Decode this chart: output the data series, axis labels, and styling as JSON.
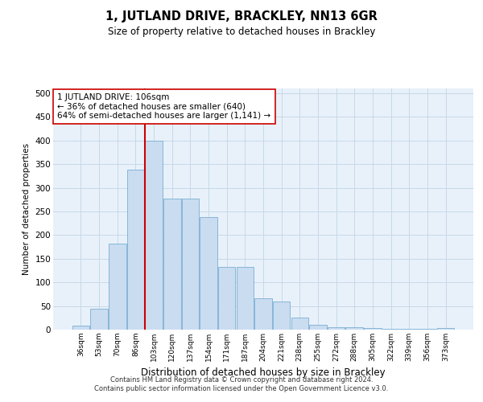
{
  "title": "1, JUTLAND DRIVE, BRACKLEY, NN13 6GR",
  "subtitle": "Size of property relative to detached houses in Brackley",
  "xlabel": "Distribution of detached houses by size in Brackley",
  "ylabel": "Number of detached properties",
  "bar_labels": [
    "36sqm",
    "53sqm",
    "70sqm",
    "86sqm",
    "103sqm",
    "120sqm",
    "137sqm",
    "154sqm",
    "171sqm",
    "187sqm",
    "204sqm",
    "221sqm",
    "238sqm",
    "255sqm",
    "272sqm",
    "288sqm",
    "305sqm",
    "322sqm",
    "339sqm",
    "356sqm",
    "373sqm"
  ],
  "bar_values": [
    8,
    45,
    182,
    338,
    400,
    277,
    277,
    238,
    133,
    133,
    67,
    60,
    25,
    10,
    5,
    5,
    3,
    2,
    2,
    2,
    3
  ],
  "bar_color": "#c9dcf0",
  "bar_edge_color": "#7aaed4",
  "grid_color": "#c8d8e8",
  "background_color": "#e8f1fa",
  "vline_color": "#cc0000",
  "annotation_text": "1 JUTLAND DRIVE: 106sqm\n← 36% of detached houses are smaller (640)\n64% of semi-detached houses are larger (1,141) →",
  "annotation_box_color": "#ffffff",
  "annotation_box_edge": "#cc0000",
  "ylim": [
    0,
    510
  ],
  "yticks": [
    0,
    50,
    100,
    150,
    200,
    250,
    300,
    350,
    400,
    450,
    500
  ],
  "footer_line1": "Contains HM Land Registry data © Crown copyright and database right 2024.",
  "footer_line2": "Contains public sector information licensed under the Open Government Licence v3.0."
}
